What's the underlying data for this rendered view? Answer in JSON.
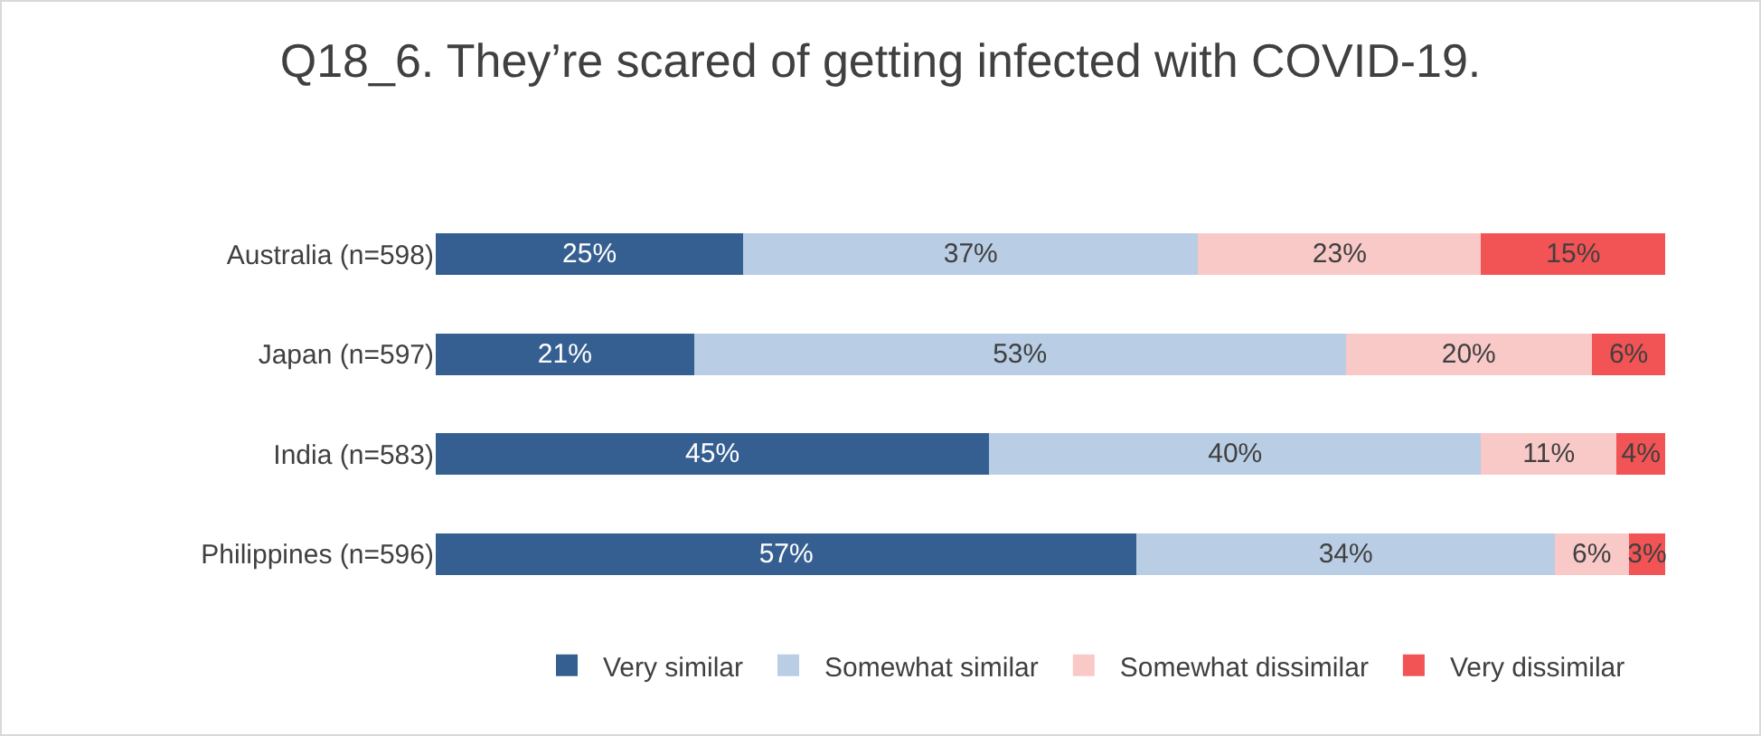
{
  "chart_data": {
    "type": "bar",
    "orientation": "horizontal",
    "stacked": true,
    "title": "Q18_6. They’re scared of getting infected with COVID-19.",
    "categories": [
      "Australia (n=598)",
      "Japan (n=597)",
      "India (n=583)",
      "Philippines (n=596)"
    ],
    "series": [
      {
        "name": "Very similar",
        "color": "#355f91",
        "values": [
          25,
          21,
          45,
          57
        ],
        "value_labels": [
          "25%",
          "21%",
          "45%",
          "57%"
        ]
      },
      {
        "name": "Somewhat similar",
        "color": "#b9cde5",
        "values": [
          37,
          53,
          40,
          34
        ],
        "value_labels": [
          "37%",
          "53%",
          "40%",
          "34%"
        ]
      },
      {
        "name": "Somewhat dissimilar",
        "color": "#f9c9c8",
        "values": [
          23,
          20,
          11,
          6
        ],
        "value_labels": [
          "23%",
          "20%",
          "11%",
          "6%"
        ]
      },
      {
        "name": "Very dissimilar",
        "color": "#f25354",
        "values": [
          15,
          6,
          4,
          3
        ],
        "value_labels": [
          "15%",
          "6%",
          "4%",
          "3%"
        ]
      }
    ],
    "legend": "bottom",
    "tick_labels": "y"
  }
}
